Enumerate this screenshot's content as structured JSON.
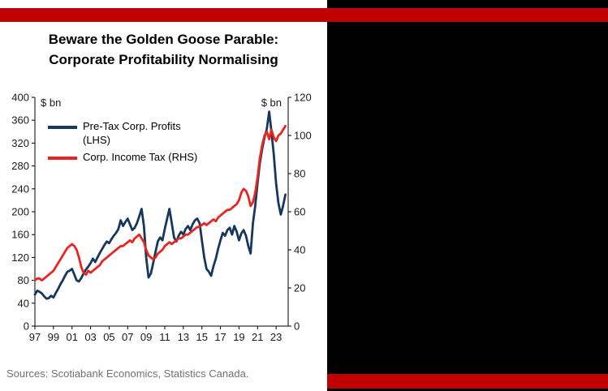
{
  "page": {
    "title_line1": "Beware the Golden Goose Parable:",
    "title_line2": "Corporate Profitability Normalising",
    "source": "Sources: Scotiabank Economics, Statistics Canada."
  },
  "colors": {
    "accent_red": "#c00000",
    "source_gray": "#6e7072",
    "axis_black": "#000000"
  },
  "chart_data": {
    "type": "line",
    "title": "Beware the Golden Goose Parable: Corporate Profitability Normalising",
    "x_start": 1997.0,
    "x_step": 0.25,
    "x_tick_years": [
      1997,
      1999,
      2001,
      2003,
      2005,
      2007,
      2009,
      2011,
      2013,
      2015,
      2017,
      2019,
      2021,
      2023
    ],
    "x_tick_labels": [
      "97",
      "99",
      "01",
      "03",
      "05",
      "07",
      "09",
      "11",
      "13",
      "15",
      "17",
      "19",
      "21",
      "23"
    ],
    "left_axis": {
      "label": "$ bn",
      "min": 0,
      "max": 400,
      "tick_step": 40
    },
    "right_axis": {
      "label": "$ bn",
      "min": 0,
      "max": 120,
      "tick_step": 20
    },
    "grid": false,
    "legend_position": "upper-left",
    "series": [
      {
        "id": "pretax-profits",
        "name": "Pre-Tax Corp. Profits (LHS)",
        "axis": "left",
        "color": "#17375e",
        "values": [
          55,
          62,
          60,
          57,
          52,
          48,
          49,
          53,
          50,
          58,
          65,
          73,
          80,
          88,
          95,
          97,
          100,
          90,
          80,
          78,
          84,
          92,
          99,
          104,
          110,
          118,
          112,
          120,
          128,
          135,
          142,
          148,
          145,
          152,
          158,
          163,
          170,
          185,
          175,
          182,
          188,
          178,
          168,
          172,
          180,
          192,
          205,
          175,
          120,
          85,
          92,
          110,
          130,
          148,
          155,
          150,
          170,
          188,
          205,
          180,
          155,
          148,
          158,
          165,
          160,
          170,
          175,
          168,
          178,
          185,
          188,
          180,
          150,
          120,
          100,
          95,
          88,
          105,
          118,
          135,
          150,
          163,
          158,
          168,
          172,
          160,
          175,
          165,
          150,
          162,
          168,
          158,
          140,
          127,
          180,
          210,
          250,
          285,
          310,
          330,
          345,
          375,
          340,
          300,
          250,
          215,
          195,
          210,
          230
        ]
      },
      {
        "id": "corp-income-tax",
        "name": "Corp. Income Tax (RHS)",
        "axis": "right",
        "color": "#e8251f",
        "values": [
          24,
          25,
          25,
          24,
          25,
          26,
          27,
          28,
          29,
          31,
          33,
          35,
          37,
          39,
          41,
          42,
          43,
          42,
          40,
          36,
          31,
          28,
          27,
          29,
          28,
          29,
          30,
          31,
          32,
          34,
          35,
          36,
          37,
          38,
          39,
          40,
          41,
          42,
          42,
          43,
          44,
          45,
          44,
          46,
          47,
          48,
          46,
          44,
          40,
          37,
          36,
          35,
          36,
          38,
          39,
          40,
          42,
          43,
          44,
          43,
          44,
          45,
          46,
          46,
          47,
          48,
          48,
          49,
          50,
          51,
          52,
          52,
          53,
          54,
          53,
          54,
          55,
          56,
          55,
          57,
          58,
          59,
          60,
          61,
          61,
          62,
          63,
          64,
          66,
          70,
          72,
          71,
          68,
          63,
          65,
          70,
          78,
          88,
          95,
          100,
          102,
          98,
          103,
          99,
          97,
          100,
          101,
          103,
          105
        ]
      }
    ]
  }
}
